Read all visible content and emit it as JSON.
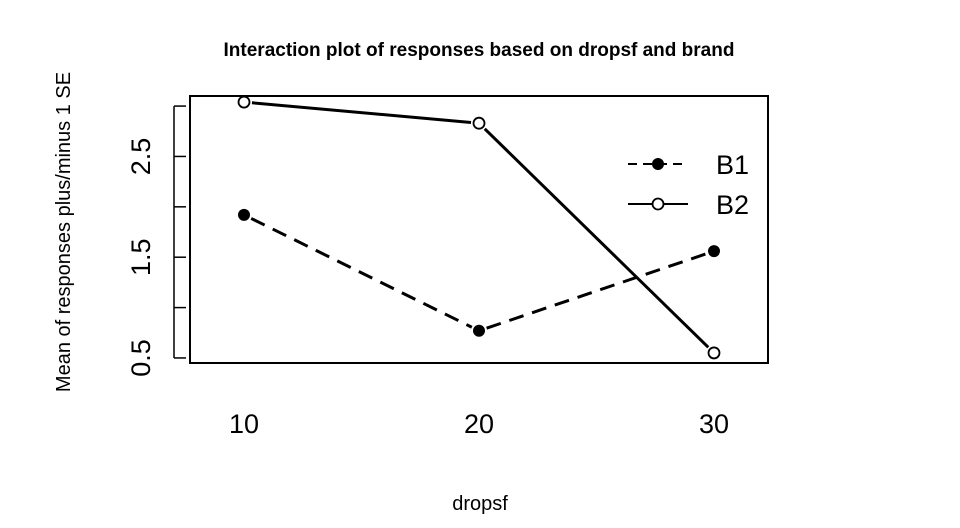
{
  "chart_data": {
    "type": "line",
    "title": "Interaction plot of responses based on dropsf and brand",
    "xlabel": "dropsf",
    "ylabel": "Mean of  responses plus/minus 1 SE",
    "categories": [
      "10",
      "20",
      "30"
    ],
    "ylim": [
      0.45,
      3.1
    ],
    "y_ticks": [
      0.5,
      1.0,
      1.5,
      2.0,
      2.5,
      3.0
    ],
    "y_tick_labels": [
      "0.5",
      "1.5",
      "2.5"
    ],
    "grid": false,
    "legend_position": "top-right",
    "series": [
      {
        "name": "B1",
        "values": [
          1.92,
          0.77,
          1.56
        ],
        "line_style": "dashed",
        "marker": "filled-circle",
        "color": "#000000"
      },
      {
        "name": "B2",
        "values": [
          3.04,
          2.83,
          0.55
        ],
        "line_style": "solid",
        "marker": "open-circle",
        "color": "#000000"
      }
    ]
  }
}
